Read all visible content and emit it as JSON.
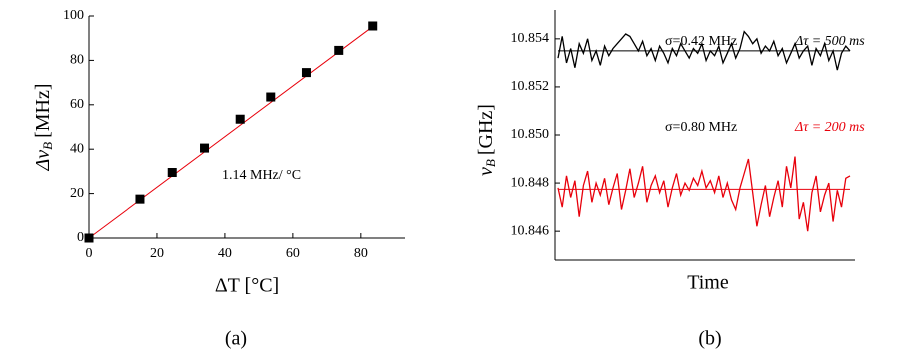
{
  "chart_data": [
    {
      "type": "scatter",
      "ylabel": [
        "Δν",
        "B",
        "[MHz]"
      ],
      "xlabel": "ΔT [°C]",
      "caption": "(a)",
      "annotation": "1.14 MHz/ °C",
      "x": [
        0,
        15,
        24.5,
        34,
        44.5,
        53.5,
        64,
        73.5,
        83.5
      ],
      "values": [
        0,
        17.5,
        29.5,
        40.5,
        53.5,
        63.5,
        74.5,
        84.5,
        95.5
      ],
      "color": "#000000",
      "fit": {
        "x": [
          0,
          84
        ],
        "values": [
          0,
          95.8
        ],
        "color": "#e8000b"
      },
      "xlim": [
        0,
        93
      ],
      "ylim": [
        0,
        100
      ],
      "xticks": [
        0,
        20,
        40,
        60,
        80
      ],
      "yticks": [
        0,
        20,
        40,
        60,
        80,
        100
      ]
    },
    {
      "type": "line",
      "ylabel": [
        "ν",
        "B",
        "[GHz]"
      ],
      "xlabel": "Time",
      "caption": "(b)",
      "ylim": [
        10.8448,
        10.8552
      ],
      "yticks": [
        10.846,
        10.848,
        {
          "value": 10.85,
          "label": "10.850"
        },
        10.852,
        10.854
      ],
      "series": [
        {
          "name": "Δτ = 500 ms",
          "sigma": "σ=0.42 MHz",
          "color": "#000000",
          "mean": 10.8535,
          "values": [
            10.8532,
            10.8541,
            10.853,
            10.8536,
            10.8528,
            10.8538,
            10.8534,
            10.854,
            10.8531,
            10.8535,
            10.8529,
            10.8537,
            10.8533,
            10.8536,
            10.8538,
            10.854,
            10.8542,
            10.8541,
            10.8538,
            10.8535,
            10.8539,
            10.8533,
            10.8536,
            10.8531,
            10.8537,
            10.8534,
            10.853,
            10.8536,
            10.8533,
            10.8538,
            10.8535,
            10.8532,
            10.8536,
            10.8534,
            10.8538,
            10.8531,
            10.8535,
            10.8533,
            10.8537,
            10.853,
            10.8534,
            10.8538,
            10.8532,
            10.8536,
            10.8543,
            10.8541,
            10.8538,
            10.854,
            10.8534,
            10.8537,
            10.8535,
            10.8539,
            10.8533,
            10.8536,
            10.853,
            10.8534,
            10.8538,
            10.8532,
            10.8535,
            10.8537,
            10.8529,
            10.8536,
            10.8533,
            10.8538,
            10.8531,
            10.8535,
            10.8527,
            10.8534,
            10.8537,
            10.8535
          ]
        },
        {
          "name": "Δτ = 200 ms",
          "sigma": "σ=0.80 MHz",
          "color": "#e8000b",
          "mean": 10.84774,
          "values": [
            10.8478,
            10.847,
            10.8483,
            10.8474,
            10.8481,
            10.8466,
            10.8479,
            10.8485,
            10.8472,
            10.848,
            10.8475,
            10.8482,
            10.8471,
            10.8478,
            10.8484,
            10.8469,
            10.8477,
            10.8486,
            10.8474,
            10.848,
            10.8487,
            10.8472,
            10.8479,
            10.8483,
            10.8476,
            10.8481,
            10.847,
            10.8478,
            10.8484,
            10.8475,
            10.848,
            10.8477,
            10.8482,
            10.8479,
            10.8485,
            10.8478,
            10.8481,
            10.8476,
            10.8483,
            10.8474,
            10.848,
            10.8473,
            10.8469,
            10.8478,
            10.8484,
            10.849,
            10.8476,
            10.8462,
            10.8471,
            10.8479,
            10.8466,
            10.8474,
            10.8481,
            10.847,
            10.8487,
            10.8478,
            10.8491,
            10.8465,
            10.8472,
            10.846,
            10.8476,
            10.8483,
            10.8468,
            10.8475,
            10.848,
            10.8464,
            10.8477,
            10.847,
            10.8482,
            10.8483
          ]
        }
      ]
    }
  ]
}
